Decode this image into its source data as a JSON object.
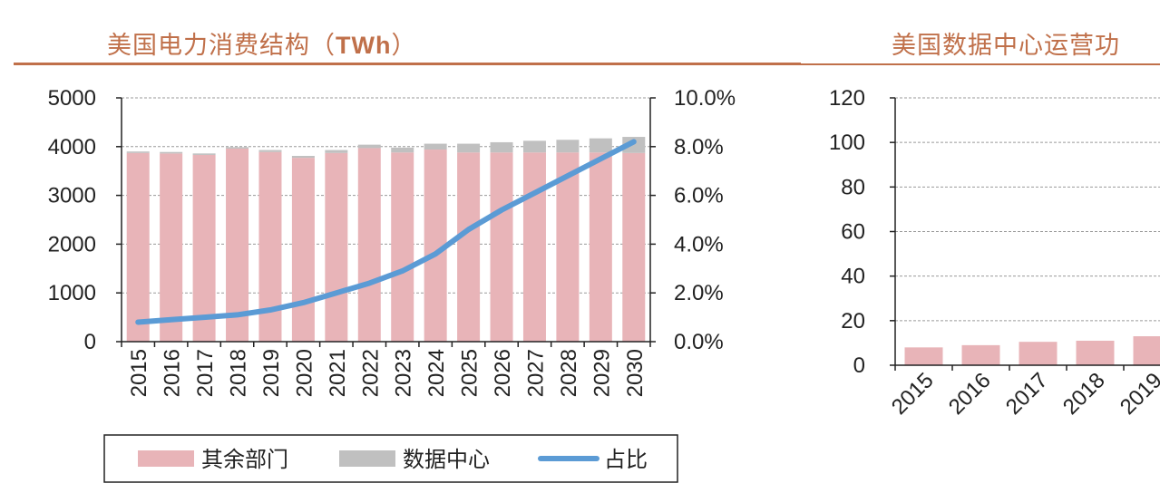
{
  "colors": {
    "accent": "#c0704a",
    "other": "#e8b4b8",
    "datacenter": "#c0c0c0",
    "share": "#5b9bd5"
  },
  "chart_data": [
    {
      "type": "bar",
      "title": "美国电力消费结构（TWh）",
      "title_main": "美国电力消费结构（",
      "title_unit": "TWh",
      "title_close": "）",
      "categories": [
        "2015",
        "2016",
        "2017",
        "2018",
        "2019",
        "2020",
        "2021",
        "2022",
        "2023",
        "2024",
        "2025",
        "2026",
        "2027",
        "2028",
        "2029",
        "2030"
      ],
      "ylim": [
        0,
        5000
      ],
      "yticks": [
        "0",
        "1000",
        "2000",
        "3000",
        "4000",
        "5000"
      ],
      "y2lim": [
        0,
        10
      ],
      "y2ticks": [
        "0.0%",
        "2.0%",
        "4.0%",
        "6.0%",
        "8.0%",
        "10.0%"
      ],
      "series": [
        {
          "name": "其余部门",
          "kind": "bar",
          "values": [
            3870,
            3860,
            3830,
            3960,
            3890,
            3770,
            3870,
            3970,
            3880,
            3940,
            3880,
            3880,
            3880,
            3880,
            3880,
            3870
          ]
        },
        {
          "name": "数据中心",
          "kind": "bar",
          "values": [
            30,
            30,
            30,
            30,
            40,
            40,
            60,
            70,
            100,
            120,
            180,
            210,
            240,
            260,
            290,
            330
          ]
        },
        {
          "name": "占比",
          "kind": "line",
          "axis": "right",
          "values": [
            0.8,
            0.9,
            1.0,
            1.1,
            1.3,
            1.6,
            2.0,
            2.4,
            2.9,
            3.6,
            4.6,
            5.4,
            6.1,
            6.8,
            7.5,
            8.2
          ]
        }
      ],
      "legend": [
        "其余部门",
        "数据中心",
        "占比"
      ]
    },
    {
      "type": "bar",
      "title": "美国数据中心运营功",
      "categories": [
        "2015",
        "2016",
        "2017",
        "2018",
        "2019"
      ],
      "ylim": [
        0,
        120
      ],
      "yticks": [
        "0",
        "20",
        "40",
        "60",
        "80",
        "100",
        "120"
      ],
      "series": [
        {
          "name": "数据中心",
          "values": [
            8,
            9,
            10.5,
            11,
            13
          ]
        }
      ]
    }
  ]
}
